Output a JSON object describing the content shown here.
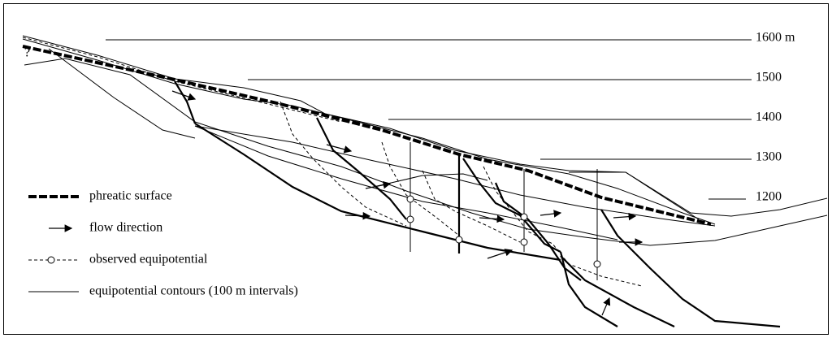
{
  "elevation_labels": [
    "1600 m",
    "1500",
    "1400",
    "1300",
    "1200"
  ],
  "unknown_marker": "?",
  "legend": [
    "phreatic surface",
    "flow direction",
    "observed equipotential",
    "equipotential contours (100 m intervals)"
  ]
}
